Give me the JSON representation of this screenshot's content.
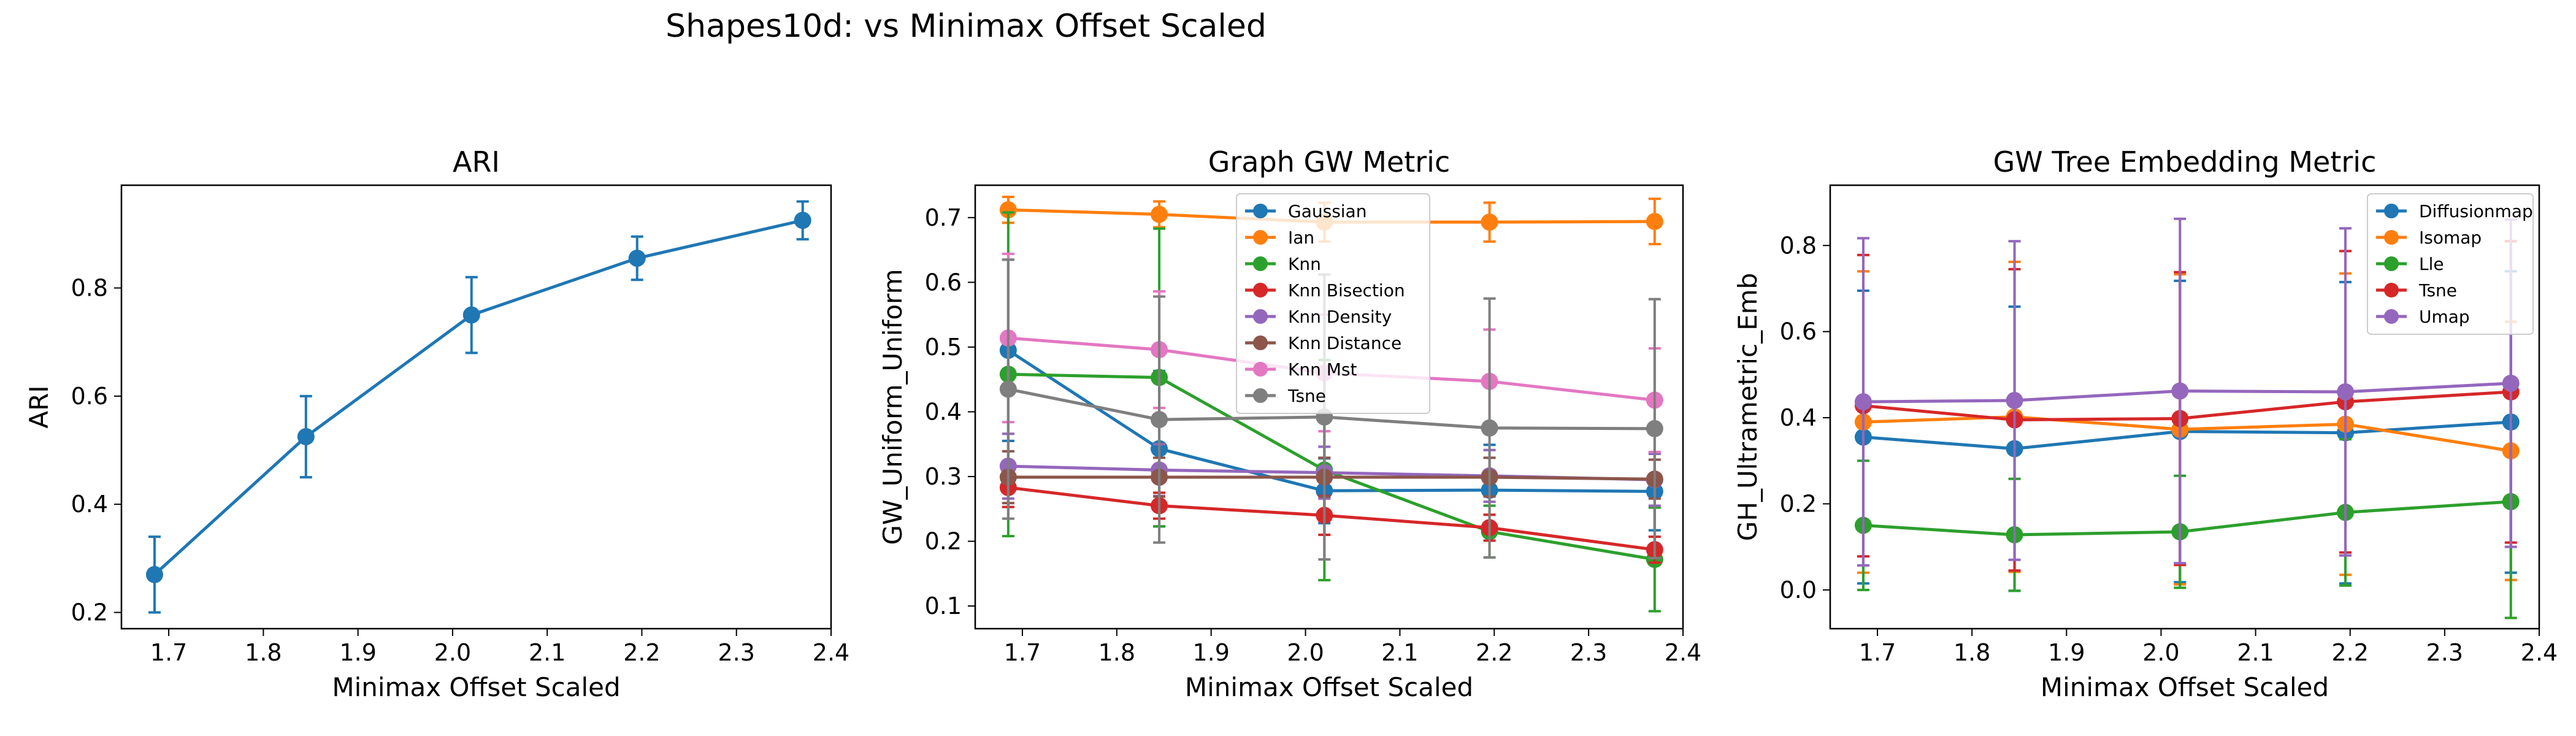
{
  "figure": {
    "suptitle": "Shapes10d: vs Minimax Offset Scaled"
  },
  "chart_data": [
    {
      "type": "line",
      "title": "ARI",
      "xlabel": "Minimax Offset Scaled",
      "ylabel": "ARI",
      "xlim": [
        1.65,
        2.4
      ],
      "ylim": [
        0.17,
        0.99
      ],
      "xticks": [
        1.7,
        1.8,
        1.9,
        2.0,
        2.1,
        2.2,
        2.3,
        2.4
      ],
      "xtick_labels": [
        "1.7",
        "1.8",
        "1.9",
        "2.0",
        "2.1",
        "2.2",
        "2.3",
        "2.4"
      ],
      "yticks": [
        0.2,
        0.4,
        0.6,
        0.8
      ],
      "ytick_labels": [
        "0.2",
        "0.4",
        "0.6",
        "0.8"
      ],
      "x": [
        1.685,
        1.845,
        2.02,
        2.195,
        2.37
      ],
      "legend": "none",
      "series": [
        {
          "color": "#1f77b4",
          "values": [
            0.27,
            0.525,
            0.75,
            0.855,
            0.925
          ],
          "err": [
            0.07,
            0.075,
            0.07,
            0.04,
            0.035
          ]
        }
      ]
    },
    {
      "type": "line",
      "title": "Graph GW Metric",
      "xlabel": "Minimax Offset Scaled",
      "ylabel": "GW_Uniform_Uniform",
      "xlim": [
        1.65,
        2.4
      ],
      "ylim": [
        0.065,
        0.75
      ],
      "xticks": [
        1.7,
        1.8,
        1.9,
        2.0,
        2.1,
        2.2,
        2.3,
        2.4
      ],
      "xtick_labels": [
        "1.7",
        "1.8",
        "1.9",
        "2.0",
        "2.1",
        "2.2",
        "2.3",
        "2.4"
      ],
      "yticks": [
        0.1,
        0.2,
        0.3,
        0.4,
        0.5,
        0.6,
        0.7
      ],
      "ytick_labels": [
        "0.1",
        "0.2",
        "0.3",
        "0.4",
        "0.5",
        "0.6",
        "0.7"
      ],
      "x": [
        1.685,
        1.845,
        2.02,
        2.195,
        2.37
      ],
      "legend": "top-center",
      "series": [
        {
          "name": "Gaussian",
          "color": "#1f77b4",
          "values": [
            0.495,
            0.343,
            0.278,
            0.279,
            0.277
          ],
          "err": [
            0.14,
            0.12,
            0.05,
            0.07,
            0.06
          ]
        },
        {
          "name": "Ian",
          "color": "#ff7f0e",
          "values": [
            0.712,
            0.705,
            0.693,
            0.693,
            0.694
          ],
          "err": [
            0.02,
            0.02,
            0.03,
            0.03,
            0.035
          ]
        },
        {
          "name": "Knn",
          "color": "#2ca02c",
          "values": [
            0.458,
            0.453,
            0.31,
            0.215,
            0.172
          ],
          "err": [
            0.25,
            0.23,
            0.17,
            0.04,
            0.08
          ]
        },
        {
          "name": "Knn Bisection",
          "color": "#d62728",
          "values": [
            0.283,
            0.255,
            0.24,
            0.221,
            0.187
          ],
          "err": [
            0.03,
            0.02,
            0.03,
            0.02,
            0.02
          ]
        },
        {
          "name": "Knn Density",
          "color": "#9467bd",
          "values": [
            0.316,
            0.31,
            0.306,
            0.301,
            0.295
          ],
          "err": [
            0.05,
            0.04,
            0.04,
            0.04,
            0.04
          ]
        },
        {
          "name": "Knn Distance",
          "color": "#8c564b",
          "values": [
            0.299,
            0.299,
            0.299,
            0.299,
            0.296
          ],
          "err": [
            0.04,
            0.03,
            0.03,
            0.03,
            0.03
          ]
        },
        {
          "name": "Knn Mst",
          "color": "#e377c2",
          "values": [
            0.514,
            0.496,
            0.46,
            0.447,
            0.418
          ],
          "err": [
            0.13,
            0.09,
            0.09,
            0.08,
            0.08
          ]
        },
        {
          "name": "Tsne",
          "color": "#7f7f7f",
          "values": [
            0.435,
            0.388,
            0.392,
            0.375,
            0.374
          ],
          "err": [
            0.2,
            0.19,
            0.22,
            0.2,
            0.2
          ]
        }
      ]
    },
    {
      "type": "line",
      "title": "GW Tree Embedding Metric",
      "xlabel": "Minimax Offset Scaled",
      "ylabel": "GH_Ultrametric_Emb",
      "xlim": [
        1.65,
        2.4
      ],
      "ylim": [
        -0.09,
        0.94
      ],
      "xticks": [
        1.7,
        1.8,
        1.9,
        2.0,
        2.1,
        2.2,
        2.3,
        2.4
      ],
      "xtick_labels": [
        "1.7",
        "1.8",
        "1.9",
        "2.0",
        "2.1",
        "2.2",
        "2.3",
        "2.4"
      ],
      "yticks": [
        0.0,
        0.2,
        0.4,
        0.6,
        0.8
      ],
      "ytick_labels": [
        "0.0",
        "0.2",
        "0.4",
        "0.6",
        "0.8"
      ],
      "x": [
        1.685,
        1.845,
        2.02,
        2.195,
        2.37
      ],
      "legend": "top-right",
      "series": [
        {
          "name": "Diffusionmap",
          "color": "#1f77b4",
          "values": [
            0.355,
            0.328,
            0.368,
            0.365,
            0.39
          ],
          "err": [
            0.34,
            0.33,
            0.35,
            0.35,
            0.35
          ]
        },
        {
          "name": "Isomap",
          "color": "#ff7f0e",
          "values": [
            0.39,
            0.402,
            0.373,
            0.385,
            0.323
          ],
          "err": [
            0.35,
            0.36,
            0.36,
            0.35,
            0.3
          ]
        },
        {
          "name": "Lle",
          "color": "#2ca02c",
          "values": [
            0.15,
            0.128,
            0.135,
            0.18,
            0.205
          ],
          "err": [
            0.15,
            0.13,
            0.13,
            0.17,
            0.27
          ]
        },
        {
          "name": "Tsne",
          "color": "#d62728",
          "values": [
            0.428,
            0.395,
            0.398,
            0.437,
            0.46
          ],
          "err": [
            0.35,
            0.35,
            0.34,
            0.35,
            0.35
          ]
        },
        {
          "name": "Umap",
          "color": "#9467bd",
          "values": [
            0.437,
            0.44,
            0.462,
            0.46,
            0.48
          ],
          "err": [
            0.38,
            0.37,
            0.4,
            0.38,
            0.38
          ]
        }
      ]
    }
  ]
}
